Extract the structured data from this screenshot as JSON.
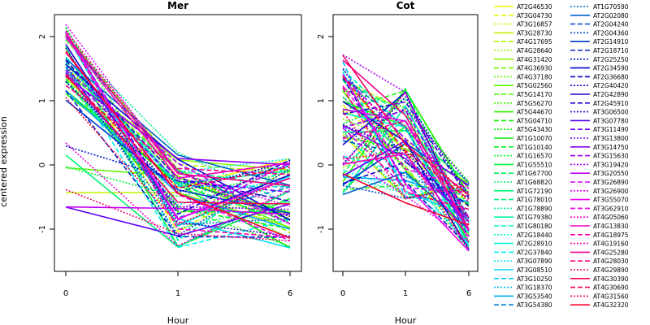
{
  "figure": {
    "ylabel": "centered expression",
    "xlabel": "Hour"
  },
  "chart_data": [
    {
      "type": "line",
      "title": "Mer",
      "xlabel": "Hour",
      "ylabel": "centered expression",
      "x_ticks": [
        "0",
        "1",
        "6"
      ],
      "y_ticks": [
        "-1",
        "0",
        "1",
        "2"
      ],
      "ylim": [
        -1.6,
        2.3
      ],
      "series_count": 100
    },
    {
      "type": "line",
      "title": "Cot",
      "xlabel": "Hour",
      "ylabel": "",
      "x_ticks": [
        "0",
        "1",
        "6"
      ],
      "y_ticks": [
        "-1",
        "0",
        "1",
        "2"
      ],
      "ylim": [
        -1.6,
        2.3
      ],
      "series_count": 100
    }
  ],
  "legend": {
    "left": [
      "AT2G46530",
      "AT3G04730",
      "AT3G16857",
      "AT3G28730",
      "AT4G17695",
      "AT4G28640",
      "AT4G31420",
      "AT4G36930",
      "AT4G37180",
      "AT5G02560",
      "AT5G14170",
      "AT5G56270",
      "AT5G44670",
      "AT5G04710",
      "AT5G43430",
      "AT1G10070",
      "AT1G10140",
      "AT1G16570",
      "AT1G55510",
      "AT1G67700",
      "AT1G68820",
      "AT1G72190",
      "AT1G78010",
      "AT1G78890",
      "AT1G79380",
      "AT1G80180",
      "AT2G18440",
      "AT2G28910",
      "AT2G37840",
      "AT3G07890",
      "AT3G08510",
      "AT3G10250",
      "AT3G18370",
      "AT3G53540",
      "AT3G54380"
    ],
    "right": [
      "AT1G70590",
      "AT2G02080",
      "AT2G04240",
      "AT2G04360",
      "AT2G14910",
      "AT2G18710",
      "AT2G25250",
      "AT2G34590",
      "AT2G36680",
      "AT2G40420",
      "AT2G42890",
      "AT2G45910",
      "AT3G06500",
      "AT3G07780",
      "AT3G11490",
      "AT3G13800",
      "AT3G14750",
      "AT3G15630",
      "AT3G19420",
      "AT3G20550",
      "AT3G26890",
      "AT3G26900",
      "AT3G55070",
      "AT3G62910",
      "AT4G05060",
      "AT4G13830",
      "AT4G18975",
      "AT4G19160",
      "AT4G25280",
      "AT4G28030",
      "AT4G29890",
      "AT4G30390",
      "AT4G30690",
      "AT4G31560",
      "AT4G32320"
    ]
  }
}
